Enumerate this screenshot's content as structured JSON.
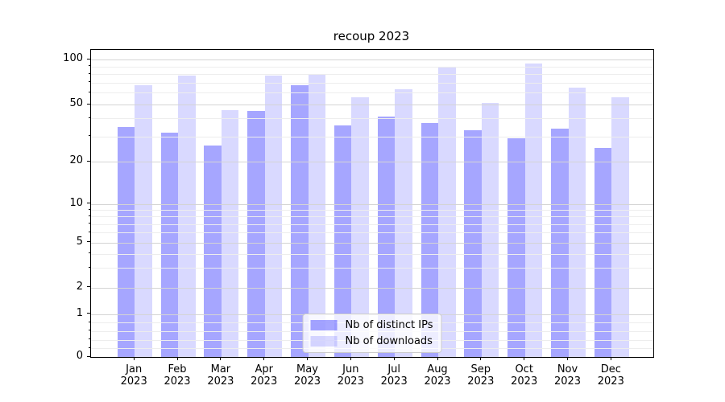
{
  "title": "recoup 2023",
  "chart_data": {
    "type": "bar",
    "title": "recoup 2023",
    "categories": [
      "Jan",
      "Feb",
      "Mar",
      "Apr",
      "May",
      "Jun",
      "Jul",
      "Aug",
      "Sep",
      "Oct",
      "Nov",
      "Dec"
    ],
    "category_year": "2023",
    "series": [
      {
        "name": "Nb of distinct IPs",
        "color": "rgba(0,0,255,0.35)",
        "values": [
          35,
          32,
          26,
          45,
          67,
          36,
          41,
          37,
          33,
          29,
          34,
          25
        ]
      },
      {
        "name": "Nb of downloads",
        "color": "rgba(0,0,255,0.15)",
        "values": [
          67,
          78,
          46,
          78,
          80,
          56,
          63,
          90,
          51,
          94,
          65,
          56
        ]
      }
    ],
    "xlabel": "",
    "ylabel": "",
    "yscale": "asinh-like-log",
    "ylim": [
      0,
      116
    ],
    "yticks": [
      0,
      1,
      2,
      5,
      10,
      20,
      50,
      100
    ],
    "ytick_labels": [
      "0",
      "1",
      "2",
      "5",
      "10",
      "20",
      "50",
      "100"
    ],
    "ytick_fracs": [
      [
        0,
        0.0
      ],
      [
        1,
        0.14
      ],
      [
        2,
        0.226
      ],
      [
        5,
        0.372
      ],
      [
        10,
        0.498
      ],
      [
        20,
        0.636
      ],
      [
        50,
        0.822
      ],
      [
        100,
        0.968
      ]
    ],
    "minor_yticks": [
      0.2,
      0.4,
      0.6,
      0.8,
      3,
      4,
      6,
      7,
      8,
      9,
      30,
      40,
      60,
      70,
      80,
      90
    ],
    "grid": true,
    "grid_major_color": "#d4d4d4",
    "grid_minor_color": "#ededed",
    "legend_position": "lower center",
    "legend": {
      "items": [
        {
          "label": "Nb of distinct IPs",
          "color": "rgba(0,0,255,0.35)"
        },
        {
          "label": "Nb of downloads",
          "color": "rgba(0,0,255,0.15)"
        }
      ]
    }
  }
}
